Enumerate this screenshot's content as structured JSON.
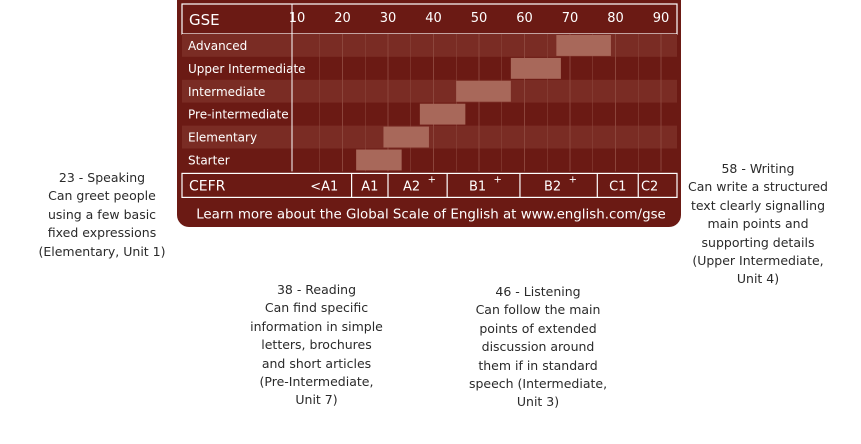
{
  "chart_data": {
    "type": "bar",
    "title": "GSE",
    "x_axis": {
      "label": "GSE",
      "ticks": [
        10,
        20,
        30,
        40,
        50,
        60,
        70,
        80,
        90
      ],
      "range": [
        10,
        90
      ]
    },
    "categories": [
      "Advanced",
      "Upper Intermediate",
      "Intermediate",
      "Pre-intermediate",
      "Elementary",
      "Starter"
    ],
    "ranges": [
      {
        "level": "Advanced",
        "start": 67,
        "end": 79
      },
      {
        "level": "Upper Intermediate",
        "start": 57,
        "end": 68
      },
      {
        "level": "Intermediate",
        "start": 45,
        "end": 57
      },
      {
        "level": "Pre-intermediate",
        "start": 37,
        "end": 47
      },
      {
        "level": "Elementary",
        "start": 29,
        "end": 39
      },
      {
        "level": "Starter",
        "start": 23,
        "end": 33
      }
    ],
    "cefr": {
      "label": "CEFR",
      "bands": [
        {
          "label": "<A1",
          "plus": "",
          "start": 10,
          "end": 22
        },
        {
          "label": "A1",
          "plus": "",
          "start": 22,
          "end": 30
        },
        {
          "label": "A2",
          "plus": "+",
          "start": 30,
          "end": 43
        },
        {
          "label": "B1",
          "plus": "+",
          "start": 43,
          "end": 59
        },
        {
          "label": "B2",
          "plus": "+",
          "start": 59,
          "end": 76
        },
        {
          "label": "C1",
          "plus": "",
          "start": 76,
          "end": 85
        },
        {
          "label": "C2",
          "plus": "",
          "start": 85,
          "end": 90
        }
      ]
    },
    "footer": "Learn more about the Global Scale of English at www.english.com/gse",
    "grid": true
  },
  "colors": {
    "panel": "#6b1a14",
    "row_alt": "#7a2c24",
    "bar": "#a8685a",
    "text": "#ffffff"
  },
  "annotations": [
    {
      "id": "speaking",
      "lines": [
        "23 - Speaking",
        "Can greet people",
        "using a few basic",
        "fixed expressions",
        "(Elementary, Unit 1)"
      ]
    },
    {
      "id": "reading",
      "lines": [
        "38 - Reading",
        "Can find specific",
        "information in simple",
        "letters, brochures",
        "and short articles",
        "(Pre-Intermediate,",
        "Unit 7)"
      ]
    },
    {
      "id": "listening",
      "lines": [
        "46 - Listening",
        "Can follow the main",
        "points of extended",
        "discussion around",
        "them if in standard",
        "speech (Intermediate,",
        "Unit 3)"
      ]
    },
    {
      "id": "writing",
      "lines": [
        "58 - Writing",
        "Can write a structured",
        "text clearly signalling",
        "main points and",
        "supporting details",
        "(Upper Intermediate,",
        "Unit 4)"
      ]
    }
  ]
}
